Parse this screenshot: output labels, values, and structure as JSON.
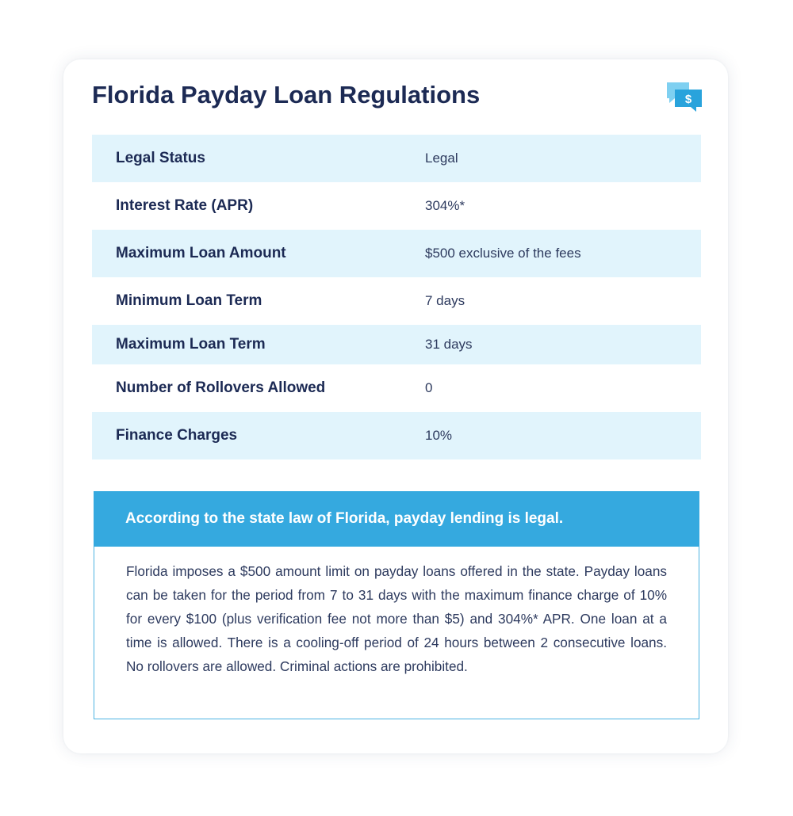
{
  "card": {
    "title": "Florida Payday Loan Regulations",
    "icon": "chat-dollar-icon",
    "icon_glyph": "$"
  },
  "table": {
    "rows": [
      {
        "label": "Legal Status",
        "value": "Legal"
      },
      {
        "label": "Interest Rate (APR)",
        "value": "304%*"
      },
      {
        "label": "Maximum Loan Amount",
        "value": "$500 exclusive of the fees"
      },
      {
        "label": "Minimum Loan Term",
        "value": "7 days"
      },
      {
        "label": "Maximum Loan Term",
        "value": "31 days"
      },
      {
        "label": "Number of Rollovers Allowed",
        "value": "0"
      },
      {
        "label": "Finance Charges",
        "value": "10%"
      }
    ]
  },
  "info": {
    "heading": "According to the state law of Florida, payday lending is legal.",
    "body": "Florida imposes a $500 amount limit on payday loans offered in the state. Payday loans can be taken for the period from 7 to 31 days with the maximum finance charge of 10% for every $100 (plus verification fee not more than $5) and 304%* APR. One loan at a time is allowed. There is a cooling-off period of 24 hours between 2 consecutive loans. No rollovers are allowed. Criminal actions are prohibited."
  },
  "colors": {
    "title_text": "#1c2a54",
    "row_shade": "#e1f4fc",
    "accent": "#35a9df",
    "icon_light": "#7fd0f1",
    "icon_dark": "#29a3dc"
  }
}
